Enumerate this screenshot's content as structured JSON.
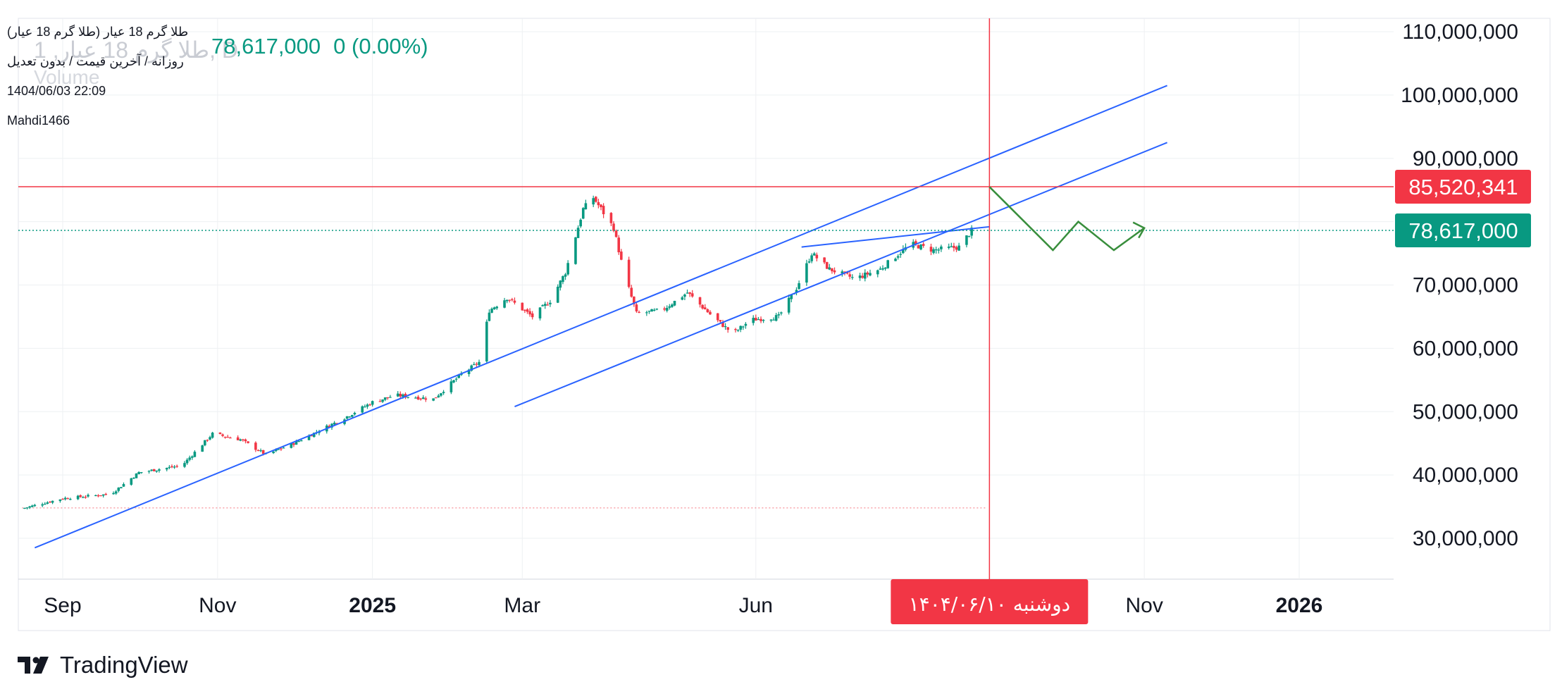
{
  "legend": {
    "title": "طلا گرم 18 عیار (طلا گرم 18 عیار)",
    "interval": "روزانه / آخرین قیمت / بدون تعدیل",
    "datetime": "1404/06/03 22:09",
    "author": "Mahdi1466",
    "price": "78,617,000",
    "change": "0 (0.00%)",
    "ghost_symbol": "طلا گرم 18 عیار, 1, D",
    "ghost_volume": "Volume"
  },
  "branding": {
    "logo_text": "TradingView",
    "logo_icon": "tradingview-logo-icon"
  },
  "colors": {
    "up": "#089981",
    "down": "#f23645",
    "trendline": "#2962ff",
    "forecast": "#388e3c",
    "crosshair": "#f23645",
    "grid": "#eef0f3"
  },
  "chart_data": {
    "type": "candlestick",
    "y_ticks": [
      30000000,
      40000000,
      50000000,
      60000000,
      70000000,
      80000000,
      90000000,
      100000000,
      110000000
    ],
    "y_tick_labels": [
      "30,000,000",
      "40,000,000",
      "50,000,000",
      "60,000,000",
      "70,000,000",
      "80,000,000",
      "90,000,000",
      "100,000,000",
      "110,000,000"
    ],
    "ylim": [
      22500000,
      112000000
    ],
    "x_ticks": [
      {
        "label": "Sep",
        "date": "2024-09-01",
        "bold": false
      },
      {
        "label": "Nov",
        "date": "2024-11-01",
        "bold": false
      },
      {
        "label": "2025",
        "date": "2025-01-01",
        "bold": true
      },
      {
        "label": "Mar",
        "date": "2025-03-01",
        "bold": false
      },
      {
        "label": "Jun",
        "date": "2025-06-01",
        "bold": false
      },
      {
        "label": "Nov",
        "date": "2025-11-01",
        "bold": false
      },
      {
        "label": "2026",
        "date": "2026-01-01",
        "bold": true
      }
    ],
    "crosshair": {
      "date": "2025-09-01",
      "price": 85520341,
      "price_label": "85,520,341",
      "date_label": "دوشنبه ۱۴۰۴/۰۶/۱۰"
    },
    "last_price": {
      "value": 78617000,
      "label": "78,617,000"
    },
    "reference_line": 34800000,
    "close_path": [
      [
        "2024-08-16",
        34700000
      ],
      [
        "2024-09-01",
        36300000
      ],
      [
        "2024-09-20",
        37000000
      ],
      [
        "2024-10-01",
        40400000
      ],
      [
        "2024-10-18",
        41500000
      ],
      [
        "2024-10-30",
        46500000
      ],
      [
        "2024-11-10",
        45600000
      ],
      [
        "2024-11-20",
        43200000
      ],
      [
        "2024-12-01",
        45000000
      ],
      [
        "2024-12-20",
        48800000
      ],
      [
        "2025-01-01",
        51500000
      ],
      [
        "2025-01-10",
        52600000
      ],
      [
        "2025-01-25",
        52000000
      ],
      [
        "2025-02-05",
        55900000
      ],
      [
        "2025-02-12",
        57800000
      ],
      [
        "2025-02-16",
        66000000
      ],
      [
        "2025-02-23",
        68000000
      ],
      [
        "2025-03-05",
        65000000
      ],
      [
        "2025-03-12",
        67500000
      ],
      [
        "2025-03-18",
        72000000
      ],
      [
        "2025-03-25",
        82000000
      ],
      [
        "2025-03-29",
        83800000
      ],
      [
        "2025-04-06",
        79000000
      ],
      [
        "2025-04-10",
        72000000
      ],
      [
        "2025-04-15",
        65500000
      ],
      [
        "2025-04-25",
        66000000
      ],
      [
        "2025-05-05",
        68800000
      ],
      [
        "2025-05-15",
        65000000
      ],
      [
        "2025-05-23",
        62300000
      ],
      [
        "2025-05-30",
        64500000
      ],
      [
        "2025-06-10",
        65000000
      ],
      [
        "2025-06-17",
        69500000
      ],
      [
        "2025-06-23",
        75000000
      ],
      [
        "2025-06-30",
        72500000
      ],
      [
        "2025-07-10",
        71000000
      ],
      [
        "2025-07-20",
        72500000
      ],
      [
        "2025-08-01",
        76500000
      ],
      [
        "2025-08-10",
        75500000
      ],
      [
        "2025-08-20",
        76000000
      ],
      [
        "2025-08-25",
        78600000
      ]
    ],
    "trendlines": [
      {
        "name": "channel-upper",
        "points": [
          [
            "2024-08-21",
            28500000
          ],
          [
            "2025-11-10",
            101500000
          ]
        ]
      },
      {
        "name": "channel-lower",
        "points": [
          [
            "2025-02-26",
            50800000
          ],
          [
            "2025-11-10",
            92500000
          ]
        ]
      },
      {
        "name": "wedge-top",
        "points": [
          [
            "2025-06-19",
            76000000
          ],
          [
            "2025-09-01",
            79200000
          ]
        ]
      }
    ],
    "forecast_path": [
      [
        "2025-09-01",
        85500000
      ],
      [
        "2025-09-26",
        75500000
      ],
      [
        "2025-10-06",
        80000000
      ],
      [
        "2025-10-20",
        75500000
      ],
      [
        "2025-11-01",
        79000000
      ]
    ]
  }
}
